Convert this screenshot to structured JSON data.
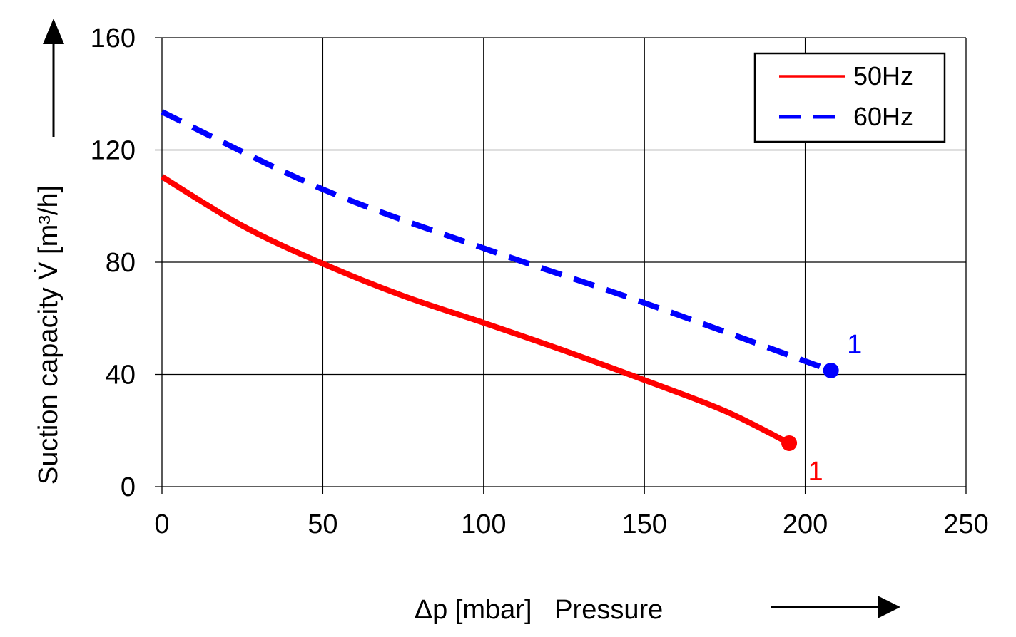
{
  "chart_data": {
    "type": "line",
    "ylabel": "Suction capacity V̇ [m³/h]",
    "xlabel": "Δp [mbar]   Pressure",
    "xlim": [
      0,
      250
    ],
    "ylim": [
      0,
      160
    ],
    "xticks": [
      "0",
      "50",
      "100",
      "150",
      "200",
      "250"
    ],
    "yticks": [
      "0",
      "40",
      "80",
      "120",
      "160"
    ],
    "grid": true,
    "legend_position": "top-right",
    "series": [
      {
        "name": "50Hz",
        "color": "#ff0000",
        "style": "solid",
        "x": [
          0,
          25,
          50,
          75,
          100,
          125,
          150,
          175,
          195
        ],
        "y": [
          110.5,
          93,
          79.5,
          68,
          58.4,
          48.5,
          38,
          27,
          15.5
        ],
        "end_label": "1"
      },
      {
        "name": "60Hz",
        "color": "#0000ff",
        "style": "dashed",
        "x": [
          0,
          50,
          100,
          150,
          208
        ],
        "y": [
          133.6,
          106,
          85,
          65.5,
          41.4
        ],
        "end_label": "1"
      }
    ]
  }
}
